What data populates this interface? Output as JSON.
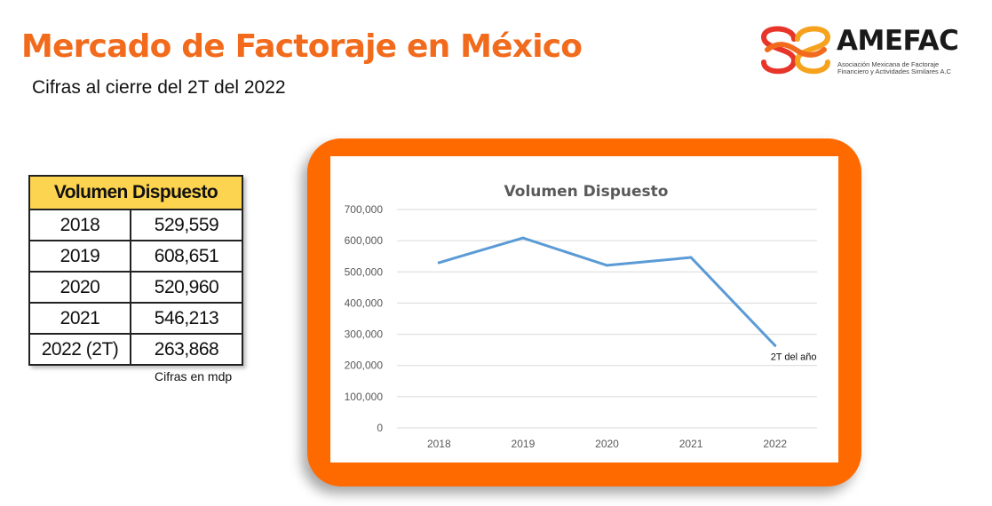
{
  "header": {
    "title": "Mercado de Factoraje en México",
    "subtitle": "Cifras al cierre del 2T del 2022"
  },
  "logo": {
    "name": "AMEFAC",
    "tagline": "Asociación Mexicana de Factoraje Financiero y Actividades Similares A.C",
    "colors": [
      "#f26b1d",
      "#e8352a",
      "#f6a21c"
    ]
  },
  "table": {
    "header": "Volumen Dispuesto",
    "rows": [
      {
        "year": "2018",
        "value": "529,559"
      },
      {
        "year": "2019",
        "value": "608,651"
      },
      {
        "year": "2020",
        "value": "520,960"
      },
      {
        "year": "2021",
        "value": "546,213"
      },
      {
        "year": "2022 (2T)",
        "value": "263,868"
      }
    ],
    "note": "Cifras en mdp"
  },
  "chart_data": {
    "type": "line",
    "title": "Volumen Dispuesto",
    "categories": [
      "2018",
      "2019",
      "2020",
      "2021",
      "2022"
    ],
    "series": [
      {
        "values": [
          529559,
          608651,
          520960,
          546213,
          263868
        ],
        "color": "#5b9bd5"
      }
    ],
    "y_ticks": [
      "0",
      "100,000",
      "200,000",
      "300,000",
      "400,000",
      "500,000",
      "600,000",
      "700,000"
    ],
    "ylim": [
      0,
      700000
    ],
    "grid": true,
    "annotation": {
      "text": "2T del año",
      "category": "2022"
    },
    "frame_color": "#ff6a00"
  }
}
